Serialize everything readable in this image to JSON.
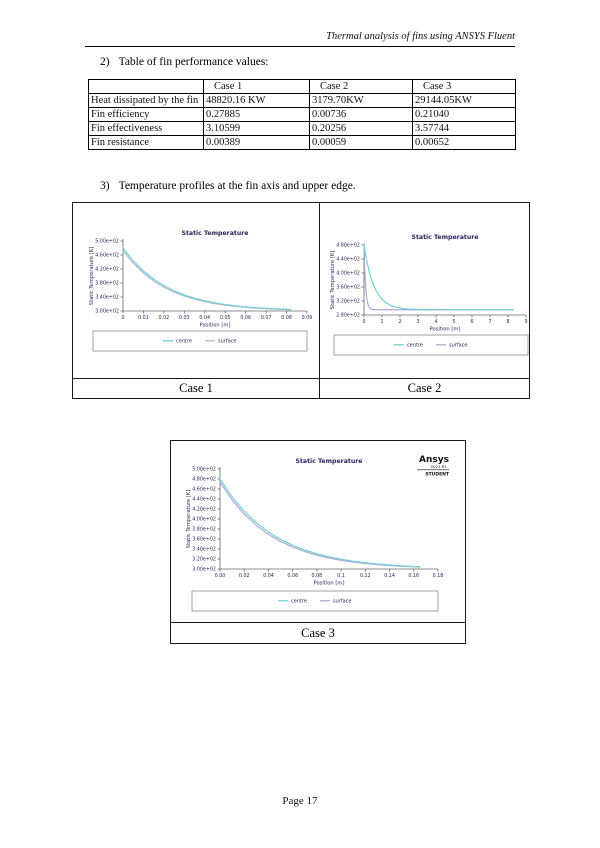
{
  "page": {
    "header": "Thermal analysis of fins using ANSYS Fluent",
    "page_number": "Page 17"
  },
  "sections": [
    {
      "number": "2)",
      "title": "Table of fin performance values:"
    },
    {
      "number": "3)",
      "title": "Temperature profiles at the fin axis and upper edge."
    }
  ],
  "performance_table": {
    "columns": [
      "",
      "Case 1",
      "Case 2",
      "Case 3"
    ],
    "rows": [
      {
        "label": "Heat dissipated by the fin",
        "values": [
          "48820.16 KW",
          "3179.70KW",
          "29144.05KW"
        ]
      },
      {
        "label": "Fin efficiency",
        "values": [
          "0.27885",
          "0.00736",
          "0.21040"
        ]
      },
      {
        "label": "Fin effectiveness",
        "values": [
          "3.10599",
          "0.20256",
          "3.57744"
        ]
      },
      {
        "label": "Fin resistance",
        "values": [
          "0.00389",
          "0.00059",
          "0.00652"
        ]
      }
    ]
  },
  "figures": [
    {
      "caption": "Case 1"
    },
    {
      "caption": "Case 2"
    },
    {
      "caption": "Case 3"
    }
  ],
  "colors": {
    "centre_line": "#6fd1d8",
    "surface_line_gray": "#b0b9ca",
    "surface_line_purple": "#b2a7d4",
    "chart_text": "#26265e",
    "axis": "#666666",
    "legend_border": "#8a8a8a"
  },
  "chart_data": [
    {
      "type": "line",
      "title": "Static Temperature",
      "xlabel": "Position [m]",
      "ylabel": "Static Temperature [K]",
      "xlim": [
        0,
        0.09
      ],
      "ylim": [
        300,
        500
      ],
      "grid": false,
      "legend_position": "bottom",
      "text_color": "#26265e",
      "xticks": {
        "values": [
          0,
          0.01,
          0.02,
          0.03,
          0.04,
          0.05,
          0.06,
          0.07,
          0.08,
          0.09
        ],
        "labels": [
          "0",
          "0.01",
          "0.02",
          "0.03",
          "0.04",
          "0.05",
          "0.06",
          "0.07",
          "0.08",
          "0.09"
        ]
      },
      "yticks": {
        "values": [
          300,
          340,
          380,
          420,
          460,
          500
        ],
        "labels": [
          "3.00e+02",
          "3.40e+02",
          "3.80e+02",
          "4.20e+02",
          "4.60e+02",
          "5.00e+02"
        ]
      },
      "series": [
        {
          "name": "centre",
          "color": "#6fd1d8",
          "points": [
            [
              0,
              480
            ],
            [
              0.005,
              443.4
            ],
            [
              0.01,
              414.2
            ],
            [
              0.015,
              391.0
            ],
            [
              0.02,
              372.5
            ],
            [
              0.025,
              357.8
            ],
            [
              0.03,
              346.0
            ],
            [
              0.035,
              336.7
            ],
            [
              0.04,
              329.2
            ],
            [
              0.045,
              323.3
            ],
            [
              0.05,
              318.5
            ],
            [
              0.055,
              314.8
            ],
            [
              0.06,
              311.8
            ],
            [
              0.065,
              309.4
            ],
            [
              0.07,
              307.5
            ],
            [
              0.075,
              306.0
            ],
            [
              0.08,
              304.7
            ],
            [
              0.082,
              304.3
            ]
          ]
        },
        {
          "name": "surface",
          "color": "#b0b9ca",
          "points": [
            [
              0,
              473
            ],
            [
              0.005,
              436.9
            ],
            [
              0.01,
              408.4
            ],
            [
              0.015,
              385.8
            ],
            [
              0.02,
              367.9
            ],
            [
              0.025,
              353.8
            ],
            [
              0.03,
              342.6
            ],
            [
              0.035,
              333.7
            ],
            [
              0.04,
              326.7
            ],
            [
              0.045,
              321.1
            ],
            [
              0.05,
              316.7
            ],
            [
              0.055,
              313.3
            ],
            [
              0.06,
              310.5
            ],
            [
              0.065,
              308.3
            ],
            [
              0.07,
              306.6
            ],
            [
              0.075,
              305.2
            ],
            [
              0.08,
              304.1
            ],
            [
              0.082,
              303.8
            ]
          ]
        }
      ],
      "watermark": null
    },
    {
      "type": "line",
      "title": "Static Temperature",
      "xlabel": "Position [m]",
      "ylabel": "Static Temperature [K]",
      "xlim": [
        0,
        9
      ],
      "ylim": [
        280,
        480
      ],
      "grid": false,
      "legend_position": "bottom",
      "text_color": "#26265e",
      "xticks": {
        "values": [
          0,
          1,
          2,
          3,
          4,
          5,
          6,
          7,
          8,
          9
        ],
        "labels": [
          "0",
          "1",
          "2",
          "3",
          "4",
          "5",
          "6",
          "7",
          "8",
          "9"
        ]
      },
      "yticks": {
        "values": [
          280,
          320,
          360,
          400,
          440,
          480
        ],
        "labels": [
          "2.80e+02",
          "3.20e+02",
          "3.60e+02",
          "4.00e+02",
          "4.40e+02",
          "4.80e+02"
        ]
      },
      "series": [
        {
          "name": "centre",
          "color": "#6fd1d8",
          "points": [
            [
              0,
              480
            ],
            [
              0.1,
              449.2
            ],
            [
              0.2,
              423.6
            ],
            [
              0.3,
              402.2
            ],
            [
              0.4,
              384.4
            ],
            [
              0.5,
              369.5
            ],
            [
              0.65,
              351.7
            ],
            [
              0.8,
              338.2
            ],
            [
              1,
              325.0
            ],
            [
              1.2,
              315.9
            ],
            [
              1.5,
              307.1
            ],
            [
              1.8,
              302.0
            ],
            [
              2.1,
              299.1
            ],
            [
              2.5,
              297.0
            ],
            [
              3,
              295.8
            ],
            [
              3.5,
              295.3
            ],
            [
              4,
              295.1
            ],
            [
              5,
              295.0
            ],
            [
              6,
              295.0
            ],
            [
              7,
              295.0
            ],
            [
              8.3,
              295.0
            ]
          ]
        },
        {
          "name": "surface",
          "color": "#b2a7d4",
          "points": [
            [
              0,
              480
            ],
            [
              0.03,
              427.6
            ],
            [
              0.06,
              390.0
            ],
            [
              0.09,
              363.1
            ],
            [
              0.12,
              343.8
            ],
            [
              0.15,
              329.9
            ],
            [
              0.2,
              315.1
            ],
            [
              0.25,
              306.5
            ],
            [
              0.3,
              301.6
            ],
            [
              0.4,
              297.2
            ],
            [
              0.5,
              295.7
            ],
            [
              0.7,
              295.1
            ],
            [
              1,
              295.0
            ],
            [
              1.5,
              295.0
            ],
            [
              2,
              295.0
            ],
            [
              3,
              295.0
            ],
            [
              4,
              295.0
            ],
            [
              5,
              295.0
            ],
            [
              6,
              295.0
            ],
            [
              7,
              295.0
            ],
            [
              8.3,
              295.0
            ]
          ]
        }
      ],
      "watermark": null
    },
    {
      "type": "line",
      "title": "Static Temperature",
      "xlabel": "Position [m]",
      "ylabel": "Static Temperature [K]",
      "xlim": [
        0,
        0.18
      ],
      "ylim": [
        300,
        500
      ],
      "grid": false,
      "legend_position": "bottom",
      "text_color": "#26265e",
      "xticks": {
        "values": [
          0,
          0.02,
          0.04,
          0.06,
          0.08,
          0.1,
          0.12,
          0.14,
          0.16,
          0.18
        ],
        "labels": [
          "0.00",
          "0.02",
          "0.04",
          "0.06",
          "0.08",
          "0.1",
          "0.12",
          "0.14",
          "0.16",
          "0.18"
        ]
      },
      "yticks": {
        "values": [
          300,
          320,
          340,
          360,
          380,
          400,
          420,
          440,
          460,
          480,
          500
        ],
        "labels": [
          "3.00e+02",
          "3.20e+02",
          "3.40e+02",
          "3.60e+02",
          "3.80e+02",
          "4.00e+02",
          "4.20e+02",
          "4.40e+02",
          "4.60e+02",
          "4.80e+02",
          "5.00e+02"
        ]
      },
      "series": [
        {
          "name": "centre",
          "color": "#6fd1d8",
          "points": [
            [
              0,
              480
            ],
            [
              0.01,
              444.1
            ],
            [
              0.02,
              415.4
            ],
            [
              0.03,
              392.4
            ],
            [
              0.04,
              374.0
            ],
            [
              0.05,
              359.3
            ],
            [
              0.06,
              347.4
            ],
            [
              0.07,
              338.0
            ],
            [
              0.08,
              330.4
            ],
            [
              0.09,
              324.4
            ],
            [
              0.1,
              319.5
            ],
            [
              0.11,
              315.6
            ],
            [
              0.12,
              312.5
            ],
            [
              0.13,
              310.0
            ],
            [
              0.14,
              308.0
            ],
            [
              0.15,
              306.4
            ],
            [
              0.16,
              305.1
            ],
            [
              0.165,
              304.6
            ]
          ]
        },
        {
          "name": "surface",
          "color": "#b2a7d4",
          "points": [
            [
              0,
              474
            ],
            [
              0.01,
              438.3
            ],
            [
              0.02,
              409.9
            ],
            [
              0.03,
              387.3
            ],
            [
              0.04,
              369.4
            ],
            [
              0.05,
              355.1
            ],
            [
              0.06,
              343.8
            ],
            [
              0.07,
              334.8
            ],
            [
              0.08,
              327.7
            ],
            [
              0.09,
              322.0
            ],
            [
              0.1,
              317.5
            ],
            [
              0.11,
              313.9
            ],
            [
              0.12,
              311.0
            ],
            [
              0.13,
              308.8
            ],
            [
              0.14,
              307.0
            ],
            [
              0.15,
              305.5
            ],
            [
              0.16,
              304.4
            ],
            [
              0.165,
              303.9
            ]
          ]
        }
      ],
      "watermark": {
        "line1": "Ansys",
        "line2": "2021 R1",
        "line3": "STUDENT"
      }
    }
  ]
}
